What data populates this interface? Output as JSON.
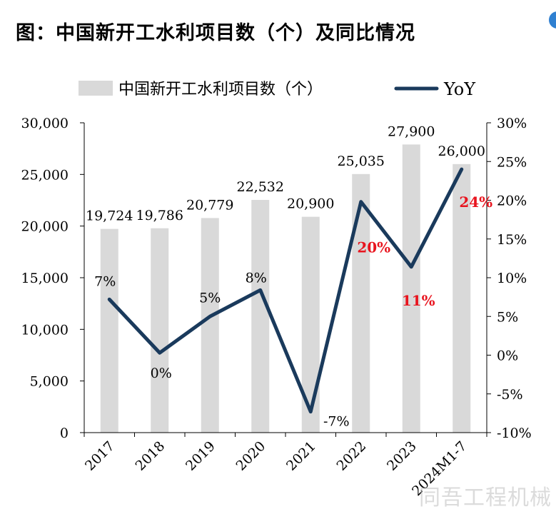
{
  "title": "图：中国新开工水利项目数（个）及同比情况",
  "watermark": "同吾工程机械",
  "colors": {
    "bar": "#d9d9d9",
    "line": "#1a3a5c",
    "highlight_label": "#e8141e",
    "axis": "#000000"
  },
  "chart_data": {
    "type": "bar",
    "title": "",
    "categories": [
      "2017",
      "2018",
      "2019",
      "2020",
      "2021",
      "2022",
      "2023",
      "2024M1-7"
    ],
    "series": [
      {
        "name": "中国新开工水利项目数（个）",
        "type": "bar",
        "axis": "left",
        "values": [
          19724,
          19786,
          20779,
          22532,
          20900,
          25035,
          27900,
          26000
        ],
        "value_labels": [
          "19,724",
          "19,786",
          "20,779",
          "22,532",
          "20,900",
          "25,035",
          "27,900",
          "26,000"
        ]
      },
      {
        "name": "YoY",
        "type": "line",
        "axis": "right",
        "values": [
          7.2,
          0.3,
          5.0,
          8.4,
          -7.3,
          19.8,
          11.4,
          24.0
        ],
        "value_labels": [
          "7%",
          "0%",
          "5%",
          "8%",
          "-7%",
          "20%",
          "11%",
          "24%"
        ],
        "highlighted_labels": [
          false,
          false,
          false,
          false,
          false,
          true,
          true,
          true
        ]
      }
    ],
    "left_axis": {
      "ylim": [
        0,
        30000
      ],
      "ticks": [
        0,
        5000,
        10000,
        15000,
        20000,
        25000,
        30000
      ],
      "tick_labels": [
        "0",
        "5,000",
        "10,000",
        "15,000",
        "20,000",
        "25,000",
        "30,000"
      ]
    },
    "right_axis": {
      "ylim": [
        -10,
        30
      ],
      "ticks": [
        -10,
        -5,
        0,
        5,
        10,
        15,
        20,
        25,
        30
      ],
      "tick_labels": [
        "-10%",
        "-5%",
        "0%",
        "5%",
        "10%",
        "15%",
        "20%",
        "25%",
        "30%"
      ]
    },
    "grid": false,
    "legend": "top"
  }
}
